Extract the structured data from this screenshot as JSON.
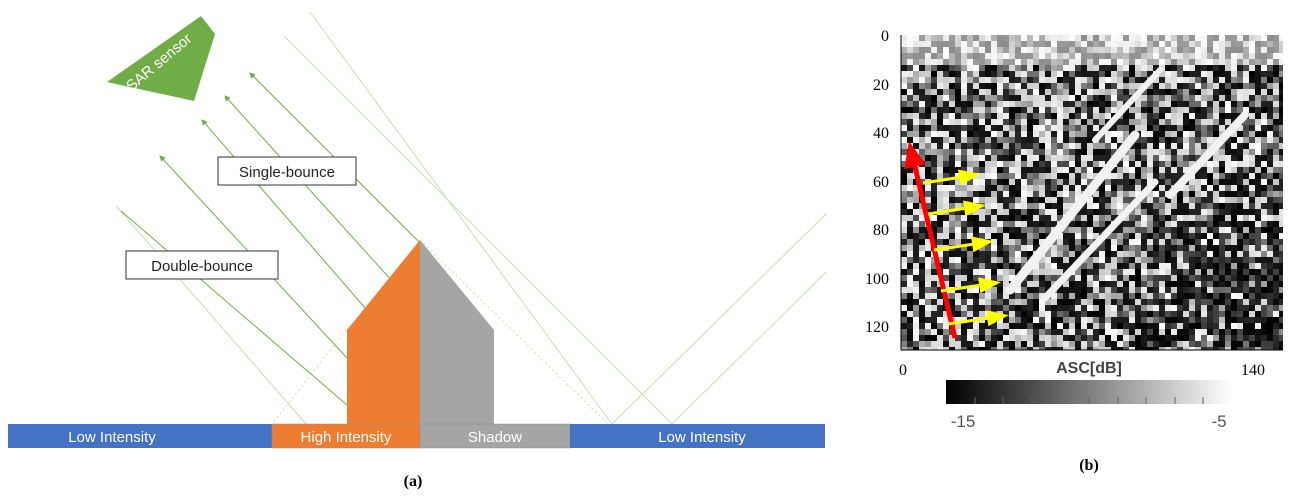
{
  "panel_a": {
    "caption": "(a)",
    "sensor_label": "SAR sensor",
    "single_bounce_label": "Single-bounce",
    "double_bounce_label": "Double-bounce",
    "ground_segments": [
      {
        "label": "Low Intensity",
        "color": "#4472c4"
      },
      {
        "label": "High Intensity",
        "color": "#ed7d31"
      },
      {
        "label": "Shadow",
        "color": "#a5a5a5"
      },
      {
        "label": "Low Intensity",
        "color": "#4472c4"
      }
    ],
    "colors": {
      "sensor": "#70ad47",
      "ray": "#70ad47",
      "lit_facade": "#ed7d31",
      "shadow_facade": "#a5a5a5"
    }
  },
  "panel_b": {
    "caption": "(b)",
    "y_ticks": [
      "0",
      "20",
      "40",
      "60",
      "80",
      "100",
      "120"
    ],
    "x_ticks": [
      "0",
      "140"
    ],
    "colorbar_title": "ASC[dB]",
    "colorbar_min": "-15",
    "colorbar_max": "-5",
    "red_arrow_color": "#ff0000",
    "yellow_arrow_color": "#ffff00",
    "yellow_arrow_count": 5
  }
}
